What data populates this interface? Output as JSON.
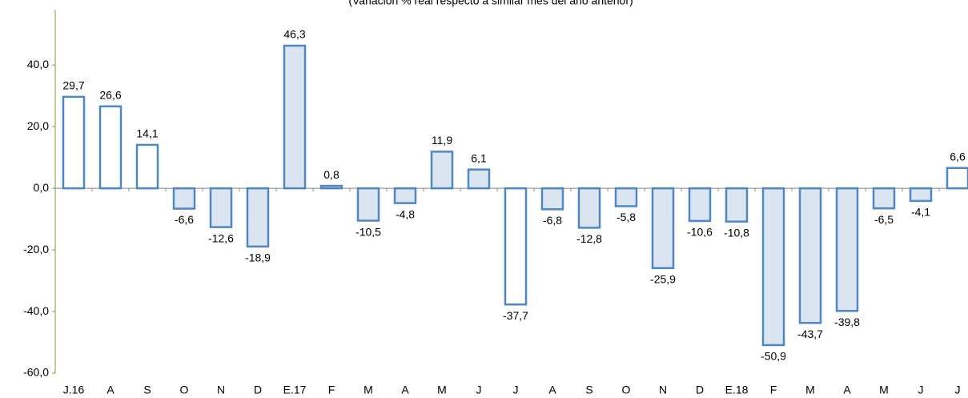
{
  "chart_data": {
    "type": "bar",
    "subtitle": "(Variación % real respecto a similar mes del año anterior)",
    "categories": [
      "J.16",
      "A",
      "S",
      "O",
      "N",
      "D",
      "E.17",
      "F",
      "M",
      "A",
      "M",
      "J",
      "J",
      "A",
      "S",
      "O",
      "N",
      "D",
      "E.18",
      "F",
      "M",
      "A",
      "M",
      "J",
      "J"
    ],
    "values": [
      29.7,
      26.6,
      14.1,
      -6.6,
      -12.6,
      -18.9,
      46.3,
      0.8,
      -10.5,
      -4.8,
      11.9,
      6.1,
      -37.7,
      -6.8,
      -12.8,
      -5.8,
      -25.9,
      -10.6,
      -10.8,
      -50.9,
      -43.7,
      -39.8,
      -6.5,
      -4.1,
      6.6
    ],
    "value_labels": [
      "29,7",
      "26,6",
      "14,1",
      "-6,6",
      "-12,6",
      "-18,9",
      "46,3",
      "0,8",
      "-10,5",
      "-4,8",
      "11,9",
      "6,1",
      "-37,7",
      "-6,8",
      "-12,8",
      "-5,8",
      "-25,9",
      "-10,6",
      "-10,8",
      "-50,9",
      "-43,7",
      "-39,8",
      "-6,5",
      "-4,1",
      "6,6"
    ],
    "fills": [
      "#ffffff",
      "#ffffff",
      "#ffffff",
      "#dbe5f1",
      "#dbe5f1",
      "#dbe5f1",
      "#dbe5f1",
      "#dbe5f1",
      "#dbe5f1",
      "#dbe5f1",
      "#dbe5f1",
      "#dbe5f1",
      "#ffffff",
      "#dbe5f1",
      "#dbe5f1",
      "#dbe5f1",
      "#dbe5f1",
      "#dbe5f1",
      "#dbe5f1",
      "#dbe5f1",
      "#dbe5f1",
      "#dbe5f1",
      "#dbe5f1",
      "#dbe5f1",
      "#ffffff"
    ],
    "color": "#4f86c6",
    "ylim": [
      -60,
      58
    ],
    "yticks": [
      {
        "value": -60,
        "label": "-60,0"
      },
      {
        "value": -40,
        "label": "-40,0"
      },
      {
        "value": -20,
        "label": "-20,0"
      },
      {
        "value": 0,
        "label": "0,0"
      },
      {
        "value": 20,
        "label": "20,0"
      },
      {
        "value": 40,
        "label": "40,0"
      }
    ],
    "grid": false
  }
}
